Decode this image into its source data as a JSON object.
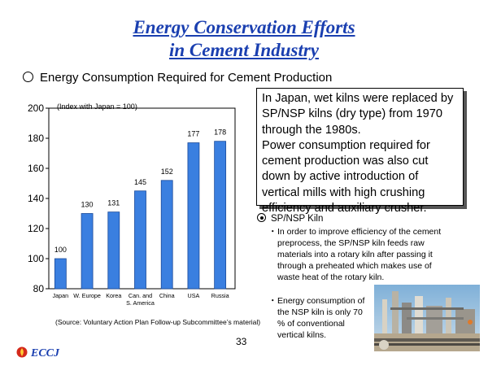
{
  "title_line1": "Energy Conservation Efforts",
  "title_line2": "in Cement Industry",
  "section_heading": "Energy Consumption Required for Cement Production",
  "chart_data": {
    "type": "bar",
    "title": "(Index with Japan = 100)",
    "categories": [
      "Japan",
      "W. Europe",
      "Korea",
      "Can. and S. America",
      "China",
      "USA",
      "Russia"
    ],
    "category_lines": [
      [
        "Japan"
      ],
      [
        "W. Europe"
      ],
      [
        "Korea"
      ],
      [
        "Can. and",
        "S. America"
      ],
      [
        "China"
      ],
      [
        "USA"
      ],
      [
        "Russia"
      ]
    ],
    "values": [
      100,
      130,
      131,
      145,
      152,
      177,
      178
    ],
    "ylim": [
      80,
      200
    ],
    "yticks": [
      80,
      100,
      120,
      140,
      160,
      180,
      200
    ],
    "xlabel": "",
    "ylabel": "",
    "bar_color": "#3a7fe0",
    "grid": false
  },
  "callout": {
    "para1": "In Japan, wet kilns were replaced by SP/NSP kilns (dry type) from 1970 through the 1980s.",
    "para2": "Power consumption required for cement production was also cut down by active introduction of vertical mills with high crushing efficiency and auxiliary crusher."
  },
  "kiln": {
    "heading": "SP/NSP Kiln",
    "bullet_symbol": "・",
    "bullet1": "In order to improve efficiency of the cement preprocess, the SP/NSP kiln feeds raw materials into a rotary kiln after passing it through a preheated which makes use of waste heat of the rotary kiln.",
    "bullet2": "Energy consumption of the NSP kiln is only 70 % of conventional vertical kilns."
  },
  "source": "(Source: Voluntary Action Plan Follow-up Subcommittee’s material)",
  "page_number": "33",
  "logo_text": "ECCJ",
  "colors": {
    "title": "#1a3fb0",
    "bar": "#3a7fe0"
  }
}
